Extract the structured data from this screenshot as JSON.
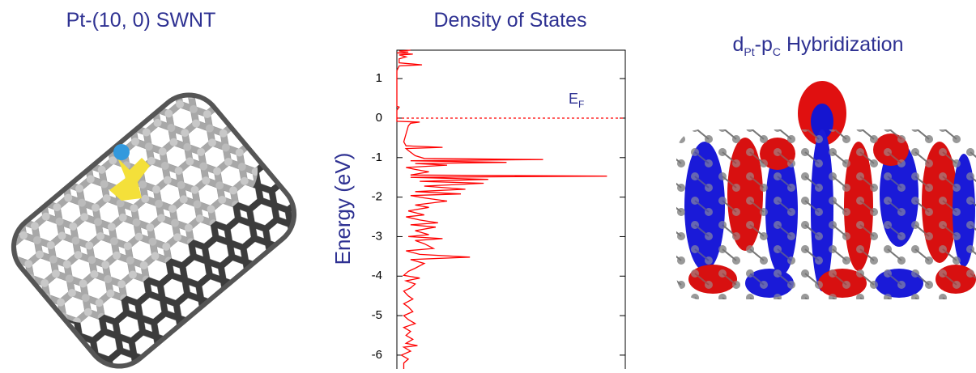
{
  "panels": {
    "left_title": "Pt-(10, 0) SWNT",
    "right_title_parts": [
      "d",
      "Pt",
      "-p",
      "C",
      " Hybridization"
    ]
  },
  "chart_data": {
    "type": "line",
    "orientation": "vertical",
    "title": "Density of States",
    "x_label": "Energy (eV)",
    "color": "#ff0000",
    "x": [
      1.72,
      1.7,
      1.67,
      1.65,
      1.62,
      1.6,
      1.55,
      1.5,
      1.4,
      1.35,
      1.32,
      1.2,
      0.3,
      0.28,
      0.2,
      -0.08,
      -0.1,
      -0.13,
      -0.2,
      -0.4,
      -0.6,
      -0.7,
      -0.74,
      -0.77,
      -0.82,
      -0.95,
      -1.02,
      -1.05,
      -1.08,
      -1.12,
      -1.15,
      -1.19,
      -1.25,
      -1.3,
      -1.36,
      -1.44,
      -1.47,
      -1.5,
      -1.55,
      -1.6,
      -1.65,
      -1.72,
      -1.8,
      -1.86,
      -1.92,
      -1.96,
      -2.02,
      -2.1,
      -2.2,
      -2.26,
      -2.35,
      -2.45,
      -2.5,
      -2.58,
      -2.65,
      -2.7,
      -2.76,
      -2.85,
      -2.95,
      -3.0,
      -3.05,
      -3.1,
      -3.18,
      -3.3,
      -3.36,
      -3.45,
      -3.52,
      -3.58,
      -3.68,
      -3.8,
      -3.88,
      -3.98,
      -4.05,
      -4.12,
      -4.2,
      -4.3,
      -4.38,
      -4.5,
      -4.58,
      -4.7,
      -4.78,
      -4.9,
      -5.0,
      -5.1,
      -5.2,
      -5.3,
      -5.4,
      -5.5,
      -5.6,
      -5.7,
      -5.76,
      -5.8,
      -5.9,
      -6.0,
      -6.1,
      -6.2,
      -6.35
    ],
    "values": [
      6,
      1,
      5,
      0,
      7,
      1,
      4,
      1,
      1,
      11,
      1,
      0,
      0,
      1,
      0,
      0,
      10,
      6,
      5,
      4,
      3,
      4,
      20,
      4,
      5,
      8,
      12,
      64,
      6,
      48,
      8,
      22,
      4,
      8,
      14,
      6,
      92,
      6,
      40,
      10,
      38,
      12,
      30,
      8,
      28,
      6,
      12,
      22,
      8,
      14,
      5,
      12,
      4,
      10,
      18,
      6,
      17,
      8,
      14,
      5,
      20,
      8,
      12,
      16,
      4,
      10,
      32,
      6,
      12,
      8,
      5,
      3,
      10,
      4,
      8,
      6,
      3,
      5,
      7,
      3,
      5,
      7,
      3,
      5,
      8,
      3,
      6,
      4,
      7,
      4,
      9,
      3,
      6,
      2,
      5,
      3,
      3
    ],
    "xlim": [
      -6.35,
      1.72
    ],
    "xticks": [
      -6,
      -5,
      -4,
      -3,
      -2,
      -1,
      0,
      1
    ],
    "ylim": [
      0,
      100
    ],
    "fermi_level": 0,
    "annotation_parts": [
      "E",
      "F"
    ]
  }
}
